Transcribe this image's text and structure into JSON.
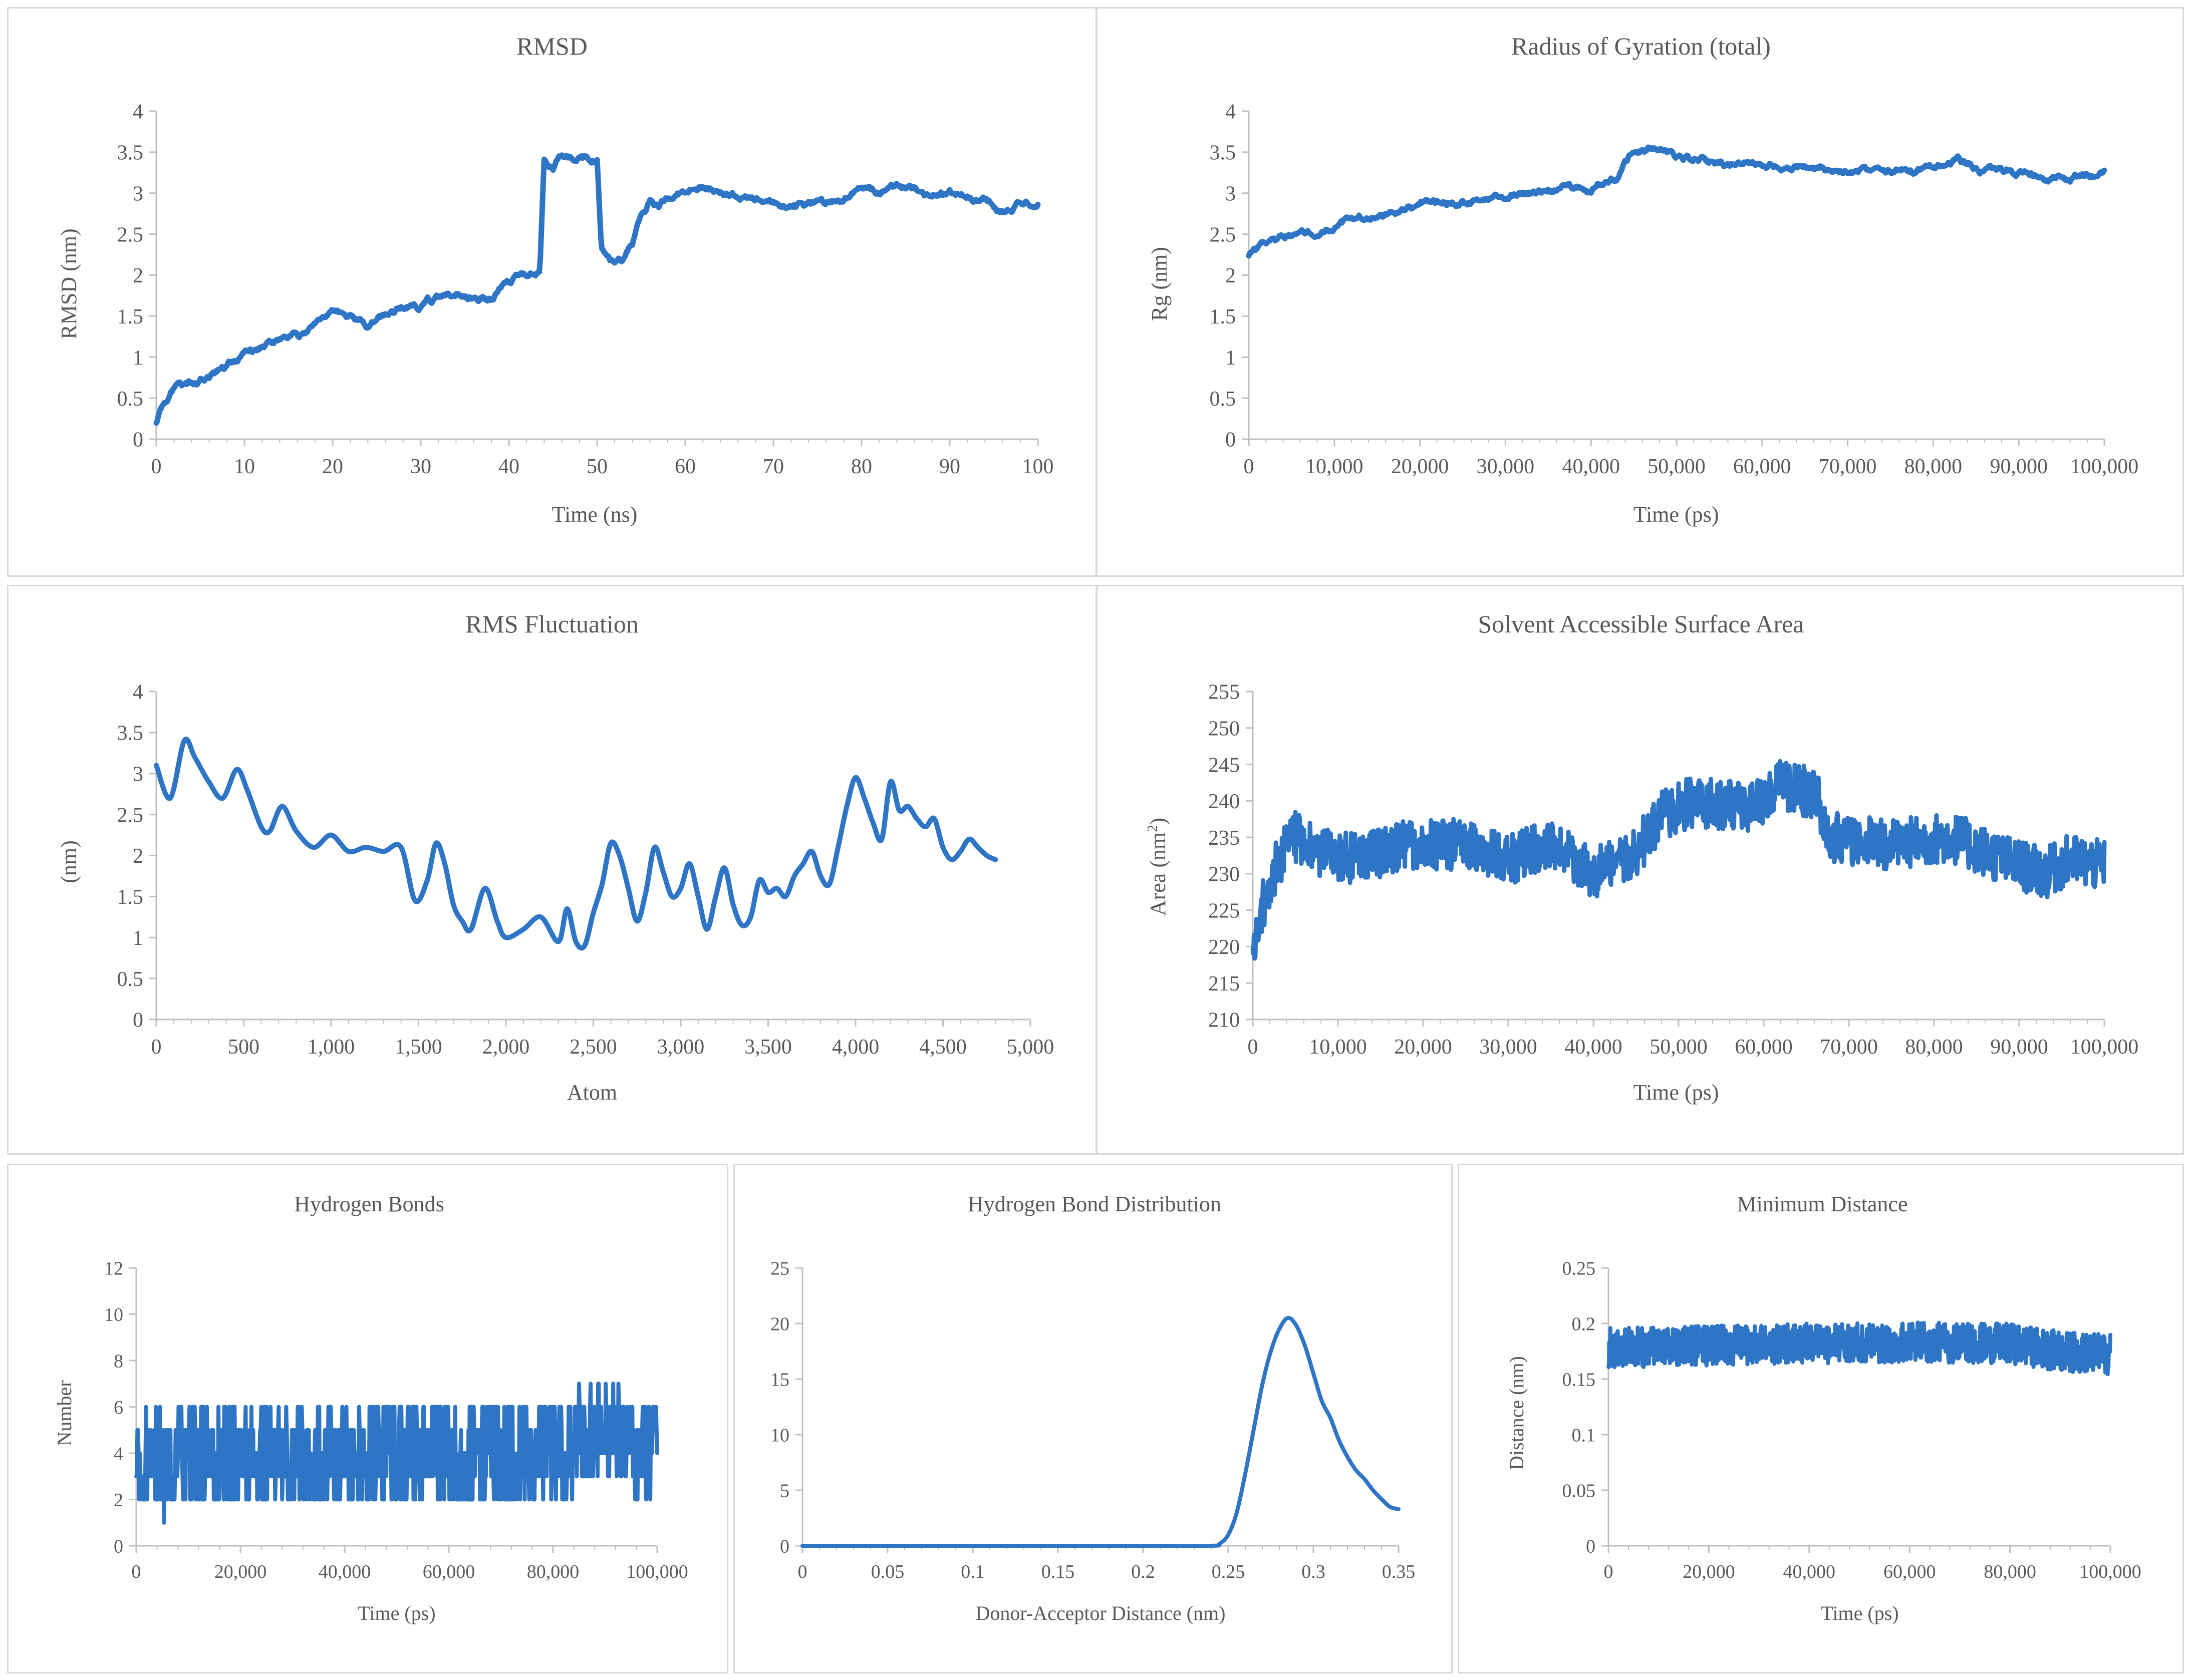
{
  "colors": {
    "series": "#2e75c6",
    "axis": "#bfbfbf",
    "text": "#595959",
    "border": "#d9d9d9"
  },
  "chart_data": [
    {
      "id": "rmsd",
      "type": "line",
      "title": "RMSD",
      "xlabel": "Time (ns)",
      "ylabel": "RMSD (nm)",
      "xlim": [
        0,
        100
      ],
      "ylim": [
        0,
        4
      ],
      "xticks": [
        0,
        10,
        20,
        30,
        40,
        50,
        60,
        70,
        80,
        90,
        100
      ],
      "xtick_labels": [
        "0",
        "10",
        "20",
        "30",
        "40",
        "50",
        "60",
        "70",
        "80",
        "90",
        "100"
      ],
      "yticks": [
        0,
        0.5,
        1,
        1.5,
        2,
        2.5,
        3,
        3.5,
        4
      ],
      "ytick_labels": [
        "0",
        "0.5",
        "1",
        "1.5",
        "2",
        "2.5",
        "3",
        "3.5",
        "4"
      ],
      "series": [
        {
          "name": "RMSD",
          "noise": 0.03,
          "seed": 1,
          "x": [
            0,
            0.5,
            2,
            4,
            6,
            8,
            10,
            12,
            14,
            16,
            18,
            20,
            22,
            24,
            26,
            28,
            30,
            32,
            34,
            36,
            38,
            40,
            42,
            43.5,
            44,
            45,
            46,
            48,
            50,
            50.5,
            51,
            52,
            53,
            54,
            55,
            56,
            57,
            58,
            60,
            62,
            64,
            66,
            68,
            70,
            72,
            74,
            76,
            78,
            80,
            82,
            84,
            86,
            88,
            90,
            92,
            94,
            96,
            98,
            100
          ],
          "y": [
            0.2,
            0.4,
            0.6,
            0.7,
            0.78,
            0.9,
            1.05,
            1.12,
            1.2,
            1.25,
            1.4,
            1.62,
            1.5,
            1.38,
            1.52,
            1.6,
            1.62,
            1.72,
            1.78,
            1.72,
            1.7,
            1.92,
            2.0,
            2.05,
            3.4,
            3.3,
            3.5,
            3.45,
            3.4,
            2.3,
            2.2,
            2.1,
            2.2,
            2.4,
            2.75,
            2.9,
            2.85,
            2.95,
            3.05,
            3.1,
            3.0,
            2.95,
            2.9,
            2.85,
            2.85,
            2.88,
            2.9,
            2.95,
            3.05,
            3.0,
            3.1,
            3.05,
            2.95,
            3.0,
            2.95,
            2.92,
            2.78,
            2.85,
            2.88
          ]
        }
      ]
    },
    {
      "id": "rg",
      "type": "line",
      "title": "Radius of Gyration (total)",
      "xlabel": "Time (ps)",
      "ylabel": "Rg (nm)",
      "xlim": [
        0,
        100000
      ],
      "ylim": [
        0,
        4
      ],
      "xticks": [
        0,
        10000,
        20000,
        30000,
        40000,
        50000,
        60000,
        70000,
        80000,
        90000,
        100000
      ],
      "xtick_labels": [
        "0",
        "10,000",
        "20,000",
        "30,000",
        "40,000",
        "50,000",
        "60,000",
        "70,000",
        "80,000",
        "90,000",
        "100,000"
      ],
      "yticks": [
        0,
        0.5,
        1,
        1.5,
        2,
        2.5,
        3,
        3.5,
        4
      ],
      "ytick_labels": [
        "0",
        "0.5",
        "1",
        "1.5",
        "2",
        "2.5",
        "3",
        "3.5",
        "4"
      ],
      "series": [
        {
          "name": "Rg",
          "noise": 0.03,
          "seed": 2,
          "x": [
            0,
            2000,
            5000,
            10000,
            15000,
            20000,
            25000,
            30000,
            35000,
            40000,
            43000,
            45000,
            48000,
            50000,
            55000,
            60000,
            65000,
            70000,
            75000,
            80000,
            83000,
            85000,
            90000,
            95000,
            100000
          ],
          "y": [
            2.25,
            2.4,
            2.5,
            2.6,
            2.72,
            2.85,
            2.88,
            2.95,
            3.05,
            3.05,
            3.2,
            3.5,
            3.55,
            3.45,
            3.35,
            3.38,
            3.3,
            3.28,
            3.25,
            3.3,
            3.38,
            3.3,
            3.25,
            3.15,
            3.28
          ]
        }
      ]
    },
    {
      "id": "rmsf",
      "type": "line",
      "title": "RMS Fluctuation",
      "xlabel": "Atom",
      "ylabel": "(nm)",
      "xlim": [
        0,
        5000
      ],
      "ylim": [
        0,
        4
      ],
      "xticks": [
        0,
        500,
        1000,
        1500,
        2000,
        2500,
        3000,
        3500,
        4000,
        4500,
        5000
      ],
      "xtick_labels": [
        "0",
        "500",
        "1,000",
        "1,500",
        "2,000",
        "2,500",
        "3,000",
        "3,500",
        "4,000",
        "4,500",
        "5,000"
      ],
      "yticks": [
        0,
        0.5,
        1,
        1.5,
        2,
        2.5,
        3,
        3.5,
        4
      ],
      "ytick_labels": [
        "0",
        "0.5",
        "1",
        "1.5",
        "2",
        "2.5",
        "3",
        "3.5",
        "4"
      ],
      "series": [
        {
          "name": "RMSF",
          "noise": 0.0,
          "seed": 3,
          "x": [
            0,
            80,
            160,
            220,
            300,
            380,
            460,
            520,
            600,
            650,
            720,
            800,
            900,
            1000,
            1100,
            1200,
            1300,
            1400,
            1480,
            1550,
            1600,
            1650,
            1700,
            1750,
            1800,
            1880,
            1950,
            2000,
            2100,
            2200,
            2300,
            2350,
            2400,
            2450,
            2500,
            2550,
            2600,
            2650,
            2700,
            2750,
            2800,
            2850,
            2900,
            2950,
            3000,
            3050,
            3100,
            3150,
            3200,
            3250,
            3300,
            3350,
            3400,
            3450,
            3500,
            3550,
            3600,
            3650,
            3700,
            3750,
            3800,
            3850,
            3900,
            3950,
            4000,
            4050,
            4100,
            4150,
            4200,
            4250,
            4300,
            4350,
            4400,
            4450,
            4500,
            4550,
            4600,
            4650,
            4700,
            4750,
            4800
          ],
          "y": [
            3.1,
            2.7,
            3.4,
            3.2,
            2.9,
            2.7,
            3.05,
            2.8,
            2.35,
            2.3,
            2.6,
            2.3,
            2.1,
            2.25,
            2.05,
            2.1,
            2.05,
            2.1,
            1.45,
            1.7,
            2.15,
            1.9,
            1.4,
            1.2,
            1.1,
            1.6,
            1.2,
            1.0,
            1.1,
            1.25,
            0.95,
            1.35,
            0.95,
            0.9,
            1.3,
            1.65,
            2.15,
            2.0,
            1.6,
            1.2,
            1.55,
            2.1,
            1.8,
            1.5,
            1.6,
            1.9,
            1.5,
            1.1,
            1.5,
            1.85,
            1.4,
            1.15,
            1.25,
            1.7,
            1.55,
            1.6,
            1.5,
            1.75,
            1.9,
            2.05,
            1.75,
            1.65,
            2.1,
            2.6,
            2.95,
            2.7,
            2.4,
            2.2,
            2.9,
            2.55,
            2.6,
            2.45,
            2.35,
            2.45,
            2.1,
            1.95,
            2.05,
            2.2,
            2.1,
            2.0,
            1.95
          ]
        }
      ]
    },
    {
      "id": "sasa",
      "type": "line",
      "title": "Solvent Accessible Surface Area",
      "xlabel": "Time (ps)",
      "ylabel": "Area (nm",
      "xlim": [
        0,
        100000
      ],
      "ylim": [
        210,
        255
      ],
      "xticks": [
        0,
        10000,
        20000,
        30000,
        40000,
        50000,
        60000,
        70000,
        80000,
        90000,
        100000
      ],
      "xtick_labels": [
        "0",
        "10,000",
        "20,000",
        "30,000",
        "40,000",
        "50,000",
        "60,000",
        "70,000",
        "80,000",
        "90,000",
        "100,000"
      ],
      "yticks": [
        210,
        215,
        220,
        225,
        230,
        235,
        240,
        245,
        250,
        255
      ],
      "ytick_labels": [
        "210",
        "215",
        "220",
        "225",
        "230",
        "235",
        "240",
        "245",
        "250",
        "255"
      ],
      "series": [
        {
          "name": "SASA",
          "noise": 3.5,
          "seed": 4,
          "x": [
            0,
            1000,
            3000,
            5000,
            8000,
            12000,
            18000,
            25000,
            30000,
            35000,
            40000,
            45000,
            48000,
            52000,
            58000,
            62000,
            66000,
            68000,
            75000,
            82000,
            88000,
            93000,
            96000,
            100000
          ],
          "y": [
            218,
            225,
            232,
            235,
            233,
            232,
            234,
            234,
            232,
            234,
            230,
            233,
            238,
            240,
            239,
            242,
            241,
            235,
            234,
            235,
            232,
            230,
            232,
            231
          ]
        }
      ]
    },
    {
      "id": "hbonds",
      "type": "line",
      "title": "Hydrogen Bonds",
      "xlabel": "Time (ps)",
      "ylabel": "Number",
      "xlim": [
        0,
        100000
      ],
      "ylim": [
        0,
        12
      ],
      "xticks": [
        0,
        20000,
        40000,
        60000,
        80000,
        100000
      ],
      "xtick_labels": [
        "0",
        "20,000",
        "40,000",
        "60,000",
        "80,000",
        "100,000"
      ],
      "yticks": [
        0,
        2,
        4,
        6,
        8,
        10,
        12
      ],
      "ytick_labels": [
        "0",
        "2",
        "4",
        "6",
        "8",
        "10",
        "12"
      ],
      "series": [
        {
          "name": "H-bonds",
          "noise": 2.2,
          "seed": 5,
          "integer": true,
          "x": [
            0,
            20000,
            40000,
            60000,
            80000,
            85000,
            90000,
            100000
          ],
          "y": [
            3.5,
            3.8,
            4.2,
            3.8,
            3.8,
            4.5,
            5.2,
            4.0
          ]
        }
      ]
    },
    {
      "id": "hbdist",
      "type": "line",
      "title": "Hydrogen Bond Distribution",
      "xlabel": "Donor-Acceptor Distance (nm)",
      "ylabel": "",
      "xlim": [
        0,
        0.35
      ],
      "ylim": [
        0,
        25
      ],
      "xticks": [
        0,
        0.05,
        0.1,
        0.15,
        0.2,
        0.25,
        0.3,
        0.35
      ],
      "xtick_labels": [
        "0",
        "0.05",
        "0.1",
        "0.15",
        "0.2",
        "0.25",
        "0.3",
        "0.35"
      ],
      "yticks": [
        0,
        5,
        10,
        15,
        20,
        25
      ],
      "ytick_labels": [
        "0",
        "5",
        "10",
        "15",
        "20",
        "25"
      ],
      "series": [
        {
          "name": "Distribution",
          "noise": 0.0,
          "seed": 6,
          "x": [
            0,
            0.1,
            0.2,
            0.24,
            0.245,
            0.25,
            0.255,
            0.26,
            0.265,
            0.27,
            0.275,
            0.28,
            0.285,
            0.29,
            0.295,
            0.3,
            0.305,
            0.31,
            0.315,
            0.32,
            0.325,
            0.33,
            0.335,
            0.34,
            0.345,
            0.35
          ],
          "y": [
            0,
            0,
            0,
            0,
            0.2,
            1.0,
            3.0,
            6.5,
            10.5,
            14.5,
            17.5,
            19.5,
            20.5,
            19.8,
            18.0,
            15.5,
            13.0,
            11.5,
            9.5,
            8.0,
            6.8,
            6.0,
            5.0,
            4.2,
            3.5,
            3.3
          ]
        }
      ]
    },
    {
      "id": "mindist",
      "type": "line",
      "title": "Minimum Distance",
      "xlabel": "Time (ps)",
      "ylabel": "Distance (nm)",
      "xlim": [
        0,
        100000
      ],
      "ylim": [
        0,
        0.25
      ],
      "xticks": [
        0,
        20000,
        40000,
        60000,
        80000,
        100000
      ],
      "xtick_labels": [
        "0",
        "20,000",
        "40,000",
        "60,000",
        "80,000",
        "100,000"
      ],
      "yticks": [
        0,
        0.05,
        0.1,
        0.15,
        0.2,
        0.25
      ],
      "ytick_labels": [
        "0",
        "0.05",
        "0.1",
        "0.15",
        "0.2",
        "0.25"
      ],
      "series": [
        {
          "name": "Min distance",
          "noise": 0.018,
          "seed": 7,
          "x": [
            0,
            20000,
            40000,
            60000,
            80000,
            90000,
            100000
          ],
          "y": [
            0.178,
            0.18,
            0.182,
            0.183,
            0.182,
            0.175,
            0.172
          ]
        }
      ]
    }
  ]
}
